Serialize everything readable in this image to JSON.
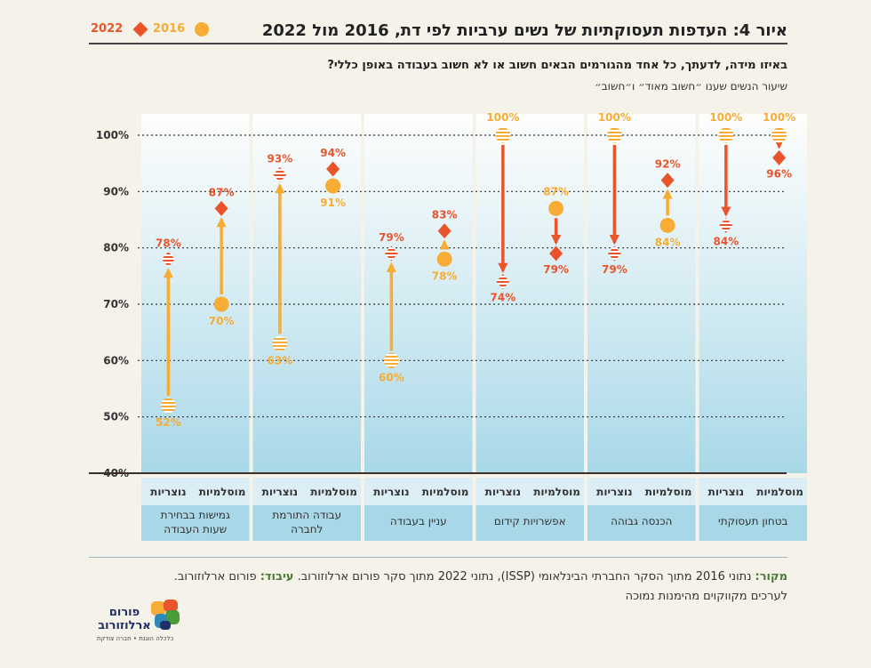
{
  "title": "איור 4: העדפות תעסוקתיות של נשים ערביות לפי דת, 2016 מול 2022",
  "subtitle": "באיזו מידה, לדעתך, כל אחד מהגורמים הבאים חשוב או לא חשוב בעבודה באופן כללי?",
  "subtitle2": "שיעור הנשים שענו ״חשוב מאוד״ ו״חשוב״",
  "legend": {
    "y2016": "2016",
    "y2022": "2022"
  },
  "colors": {
    "y2016": "#f6ac35",
    "y2022": "#e9542a",
    "band": "#a8d8e8",
    "axis": "#3b2f2a"
  },
  "chart_data": {
    "type": "dot-arrow",
    "ylim": [
      40,
      100
    ],
    "yticks": [
      "40%",
      "50%",
      "60%",
      "70%",
      "80%",
      "90%",
      "100%"
    ],
    "sub_labels": [
      "מוסלמיות",
      "נוצריות"
    ],
    "categories": [
      {
        "name": "בטחון תעסוקתי",
        "points": [
          {
            "group": "מוסלמיות",
            "y2016": 100,
            "y2022": 96
          },
          {
            "group": "נוצריות",
            "y2016": 100,
            "y2022": 84
          }
        ]
      },
      {
        "name": "הכנסה גבוהה",
        "points": [
          {
            "group": "מוסלמיות",
            "y2016": 84,
            "y2022": 92
          },
          {
            "group": "נוצריות",
            "y2016": 100,
            "y2022": 79
          }
        ]
      },
      {
        "name": "אפשרויות קידום",
        "points": [
          {
            "group": "מוסלמיות",
            "y2016": 87,
            "y2022": 79
          },
          {
            "group": "נוצריות",
            "y2016": 100,
            "y2022": 74
          }
        ]
      },
      {
        "name": "עניין בעבודה",
        "points": [
          {
            "group": "מוסלמיות",
            "y2016": 78,
            "y2022": 83
          },
          {
            "group": "נוצריות",
            "y2016": 60,
            "y2022": 79
          }
        ]
      },
      {
        "name": "עבודה התורמת לחברה",
        "points": [
          {
            "group": "מוסלמיות",
            "y2016": 91,
            "y2022": 94
          },
          {
            "group": "נוצריות",
            "y2016": 63,
            "y2022": 93
          }
        ]
      },
      {
        "name": "גמישות בבחירת שעות העבודה",
        "points": [
          {
            "group": "מוסלמיות",
            "y2016": 70,
            "y2022": 87
          },
          {
            "group": "נוצריות",
            "y2016": 52,
            "y2022": 78
          }
        ]
      }
    ]
  },
  "source": {
    "label1": "מקור:",
    "text1": " נתוני 2016 מתוך הסקר החברתי הבינלאומי (ISSP), נתוני 2022 מתוך סקר פורום ארלוזורוב. ",
    "label2": "עיבוד:",
    "text2": " פורום ארלוזורוב.",
    "line2": "לערכים מקווקוים מהימנות נמוכה"
  },
  "logo": {
    "name1": "פורום",
    "name2": "ארלוזורוב",
    "tagline": "כלכלה הוגנת • חברה צודקת"
  }
}
